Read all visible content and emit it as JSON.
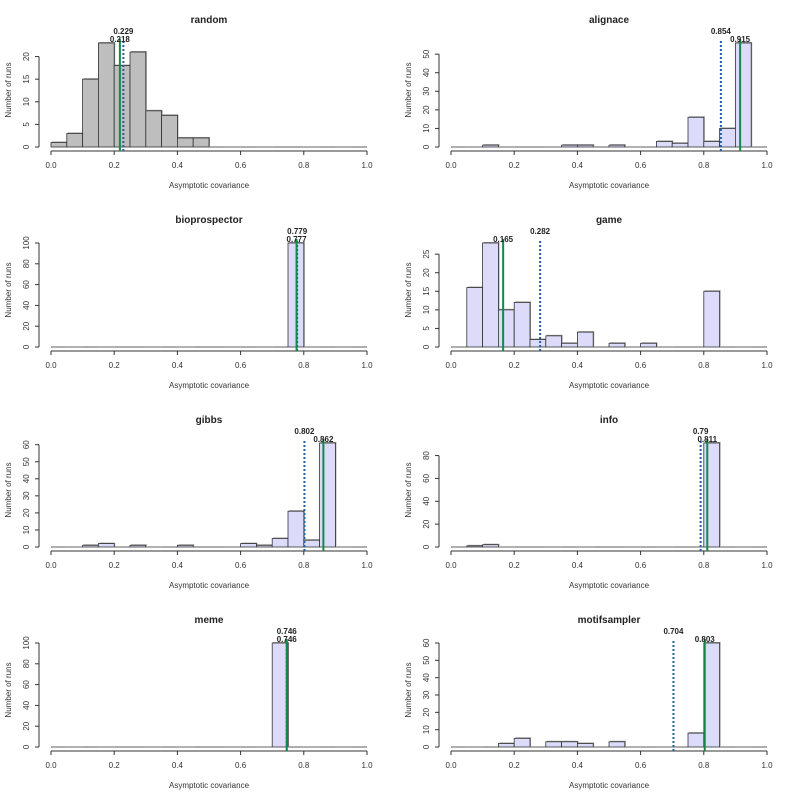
{
  "colors": {
    "bar_random": "#bebebe",
    "bar_other": "#dcdcfa",
    "dotted_line": "#1f5fa8",
    "solid_line": "#138a4a"
  },
  "chart_data": [
    {
      "type": "bar",
      "title": "random",
      "xlabel": "Asymptotic covariance",
      "ylabel": "Number of runs",
      "xlim": [
        0,
        1
      ],
      "bin_width": 0.05,
      "x_ticks": [
        "0.0",
        "0.2",
        "0.4",
        "0.6",
        "0.8",
        "1.0"
      ],
      "y_ticks": [
        "0",
        "5",
        "10",
        "15",
        "20"
      ],
      "ylim": [
        0,
        23
      ],
      "fill": "gray",
      "counts": [
        1,
        3,
        15,
        23,
        18,
        21,
        8,
        7,
        2,
        2,
        0,
        0,
        0,
        0,
        0,
        0,
        0,
        0,
        0,
        0
      ],
      "lines": [
        {
          "style": "dotted",
          "value": 0.229,
          "label": "0.229"
        },
        {
          "style": "solid",
          "value": 0.218,
          "label": "0.218"
        }
      ]
    },
    {
      "type": "bar",
      "title": "alignace",
      "xlabel": "Asymptotic covariance",
      "ylabel": "Number of runs",
      "xlim": [
        0,
        1
      ],
      "bin_width": 0.05,
      "x_ticks": [
        "0.0",
        "0.2",
        "0.4",
        "0.6",
        "0.8",
        "1.0"
      ],
      "y_ticks": [
        "0",
        "10",
        "20",
        "30",
        "40",
        "50"
      ],
      "ylim": [
        0,
        56
      ],
      "fill": "lavender",
      "counts": [
        0,
        0,
        1,
        0,
        0,
        0,
        0,
        1,
        1,
        0,
        1,
        0,
        0,
        3,
        2,
        16,
        3,
        10,
        56,
        0
      ],
      "lines": [
        {
          "style": "dotted",
          "value": 0.854,
          "label": "0.854"
        },
        {
          "style": "solid",
          "value": 0.915,
          "label": "0.915"
        }
      ]
    },
    {
      "type": "bar",
      "title": "bioprospector",
      "xlabel": "Asymptotic covariance",
      "ylabel": "Number of runs",
      "xlim": [
        0,
        1
      ],
      "bin_width": 0.05,
      "x_ticks": [
        "0.0",
        "0.2",
        "0.4",
        "0.6",
        "0.8",
        "1.0"
      ],
      "y_ticks": [
        "0",
        "20",
        "40",
        "60",
        "80",
        "100"
      ],
      "ylim": [
        0,
        100
      ],
      "fill": "lavender",
      "counts": [
        0,
        0,
        0,
        0,
        0,
        0,
        0,
        0,
        0,
        0,
        0,
        0,
        0,
        0,
        0,
        100,
        0,
        0,
        0,
        0
      ],
      "lines": [
        {
          "style": "dotted",
          "value": 0.779,
          "label": "0.779"
        },
        {
          "style": "solid",
          "value": 0.777,
          "label": "0.777"
        }
      ]
    },
    {
      "type": "bar",
      "title": "game",
      "xlabel": "Asymptotic covariance",
      "ylabel": "Number of runs",
      "xlim": [
        0,
        1
      ],
      "bin_width": 0.05,
      "x_ticks": [
        "0.0",
        "0.2",
        "0.4",
        "0.6",
        "0.8",
        "1.0"
      ],
      "y_ticks": [
        "0",
        "5",
        "10",
        "15",
        "20",
        "25"
      ],
      "ylim": [
        0,
        28
      ],
      "fill": "lavender",
      "counts": [
        0,
        16,
        28,
        10,
        12,
        2,
        3,
        1,
        4,
        0,
        1,
        0,
        1,
        0,
        0,
        0,
        15,
        0,
        0,
        0
      ],
      "lines": [
        {
          "style": "dotted",
          "value": 0.282,
          "label": "0.282"
        },
        {
          "style": "solid",
          "value": 0.165,
          "label": "0.165"
        }
      ]
    },
    {
      "type": "bar",
      "title": "gibbs",
      "xlabel": "Asymptotic covariance",
      "ylabel": "Number of runs",
      "xlim": [
        0,
        1
      ],
      "bin_width": 0.05,
      "x_ticks": [
        "0.0",
        "0.2",
        "0.4",
        "0.6",
        "0.8",
        "1.0"
      ],
      "y_ticks": [
        "0",
        "10",
        "20",
        "30",
        "40",
        "50",
        "60"
      ],
      "ylim": [
        0,
        61
      ],
      "fill": "lavender",
      "counts": [
        0,
        0,
        1,
        2,
        0,
        1,
        0,
        0,
        1,
        0,
        0,
        0,
        2,
        1,
        5,
        21,
        4,
        61,
        0,
        0
      ],
      "lines": [
        {
          "style": "dotted",
          "value": 0.802,
          "label": "0.802"
        },
        {
          "style": "solid",
          "value": 0.862,
          "label": "0.862"
        }
      ]
    },
    {
      "type": "bar",
      "title": "info",
      "xlabel": "Asymptotic covariance",
      "ylabel": "Number of runs",
      "xlim": [
        0,
        1
      ],
      "bin_width": 0.05,
      "x_ticks": [
        "0.0",
        "0.2",
        "0.4",
        "0.6",
        "0.8",
        "1.0"
      ],
      "y_ticks": [
        "0",
        "20",
        "40",
        "60",
        "80"
      ],
      "ylim": [
        0,
        91
      ],
      "fill": "lavender",
      "counts": [
        0,
        1,
        2,
        0,
        0,
        0,
        0,
        0,
        0,
        0,
        0,
        0,
        0,
        0,
        0,
        0,
        91,
        0,
        0,
        0
      ],
      "lines": [
        {
          "style": "dotted",
          "value": 0.79,
          "label": "0.79"
        },
        {
          "style": "solid",
          "value": 0.811,
          "label": "0.811"
        }
      ]
    },
    {
      "type": "bar",
      "title": "meme",
      "xlabel": "Asymptotic covariance",
      "ylabel": "Number of runs",
      "xlim": [
        0,
        1
      ],
      "bin_width": 0.05,
      "x_ticks": [
        "0.0",
        "0.2",
        "0.4",
        "0.6",
        "0.8",
        "1.0"
      ],
      "y_ticks": [
        "0",
        "20",
        "40",
        "60",
        "80",
        "100"
      ],
      "ylim": [
        0,
        100
      ],
      "fill": "lavender",
      "counts": [
        0,
        0,
        0,
        0,
        0,
        0,
        0,
        0,
        0,
        0,
        0,
        0,
        0,
        0,
        100,
        0,
        0,
        0,
        0,
        0
      ],
      "lines": [
        {
          "style": "dotted",
          "value": 0.746,
          "label": "0.746"
        },
        {
          "style": "solid",
          "value": 0.746,
          "label": "0.746"
        }
      ]
    },
    {
      "type": "bar",
      "title": "motifsampler",
      "xlabel": "Asymptotic covariance",
      "ylabel": "Number of runs",
      "xlim": [
        0,
        1
      ],
      "bin_width": 0.05,
      "x_ticks": [
        "0.0",
        "0.2",
        "0.4",
        "0.6",
        "0.8",
        "1.0"
      ],
      "y_ticks": [
        "0",
        "10",
        "20",
        "30",
        "40",
        "50",
        "60"
      ],
      "ylim": [
        0,
        60
      ],
      "fill": "lavender",
      "counts": [
        0,
        0,
        0,
        2,
        5,
        0,
        3,
        3,
        2,
        0,
        3,
        0,
        0,
        0,
        0,
        8,
        60,
        0,
        0,
        0
      ],
      "lines": [
        {
          "style": "dotted",
          "value": 0.704,
          "label": "0.704"
        },
        {
          "style": "solid",
          "value": 0.803,
          "label": "0.803"
        }
      ]
    }
  ]
}
